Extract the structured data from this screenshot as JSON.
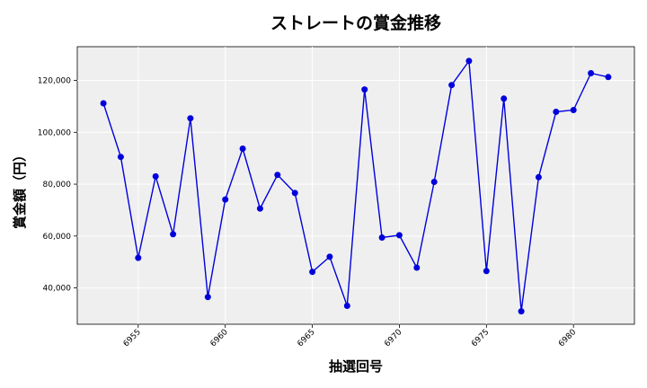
{
  "chart_data": {
    "type": "line",
    "title": "ストレートの賞金推移",
    "xlabel": "抽選回号",
    "ylabel": "賞金額（円）",
    "xlim": [
      6951.5,
      6983.5
    ],
    "ylim": [
      26000,
      133000
    ],
    "xticks": [
      6955,
      6960,
      6965,
      6970,
      6975,
      6980
    ],
    "yticks": [
      40000,
      60000,
      80000,
      100000,
      120000
    ],
    "ytick_labels": [
      "40,000",
      "60,000",
      "80,000",
      "100,000",
      "120,000"
    ],
    "grid": true,
    "series": [
      {
        "color": "#0000dd",
        "x": [
          6953,
          6954,
          6955,
          6956,
          6957,
          6958,
          6959,
          6960,
          6961,
          6962,
          6963,
          6964,
          6965,
          6966,
          6967,
          6968,
          6969,
          6970,
          6971,
          6972,
          6973,
          6974,
          6975,
          6976,
          6977,
          6978,
          6979,
          6980,
          6981,
          6982
        ],
        "y": [
          111200,
          90500,
          51600,
          83000,
          60700,
          105400,
          36500,
          74100,
          93700,
          70600,
          83600,
          76600,
          46200,
          52000,
          33100,
          116500,
          59400,
          60300,
          47800,
          80900,
          118200,
          127500,
          46500,
          113000,
          31000,
          82700,
          107900,
          108600,
          122800,
          121300
        ]
      }
    ]
  }
}
